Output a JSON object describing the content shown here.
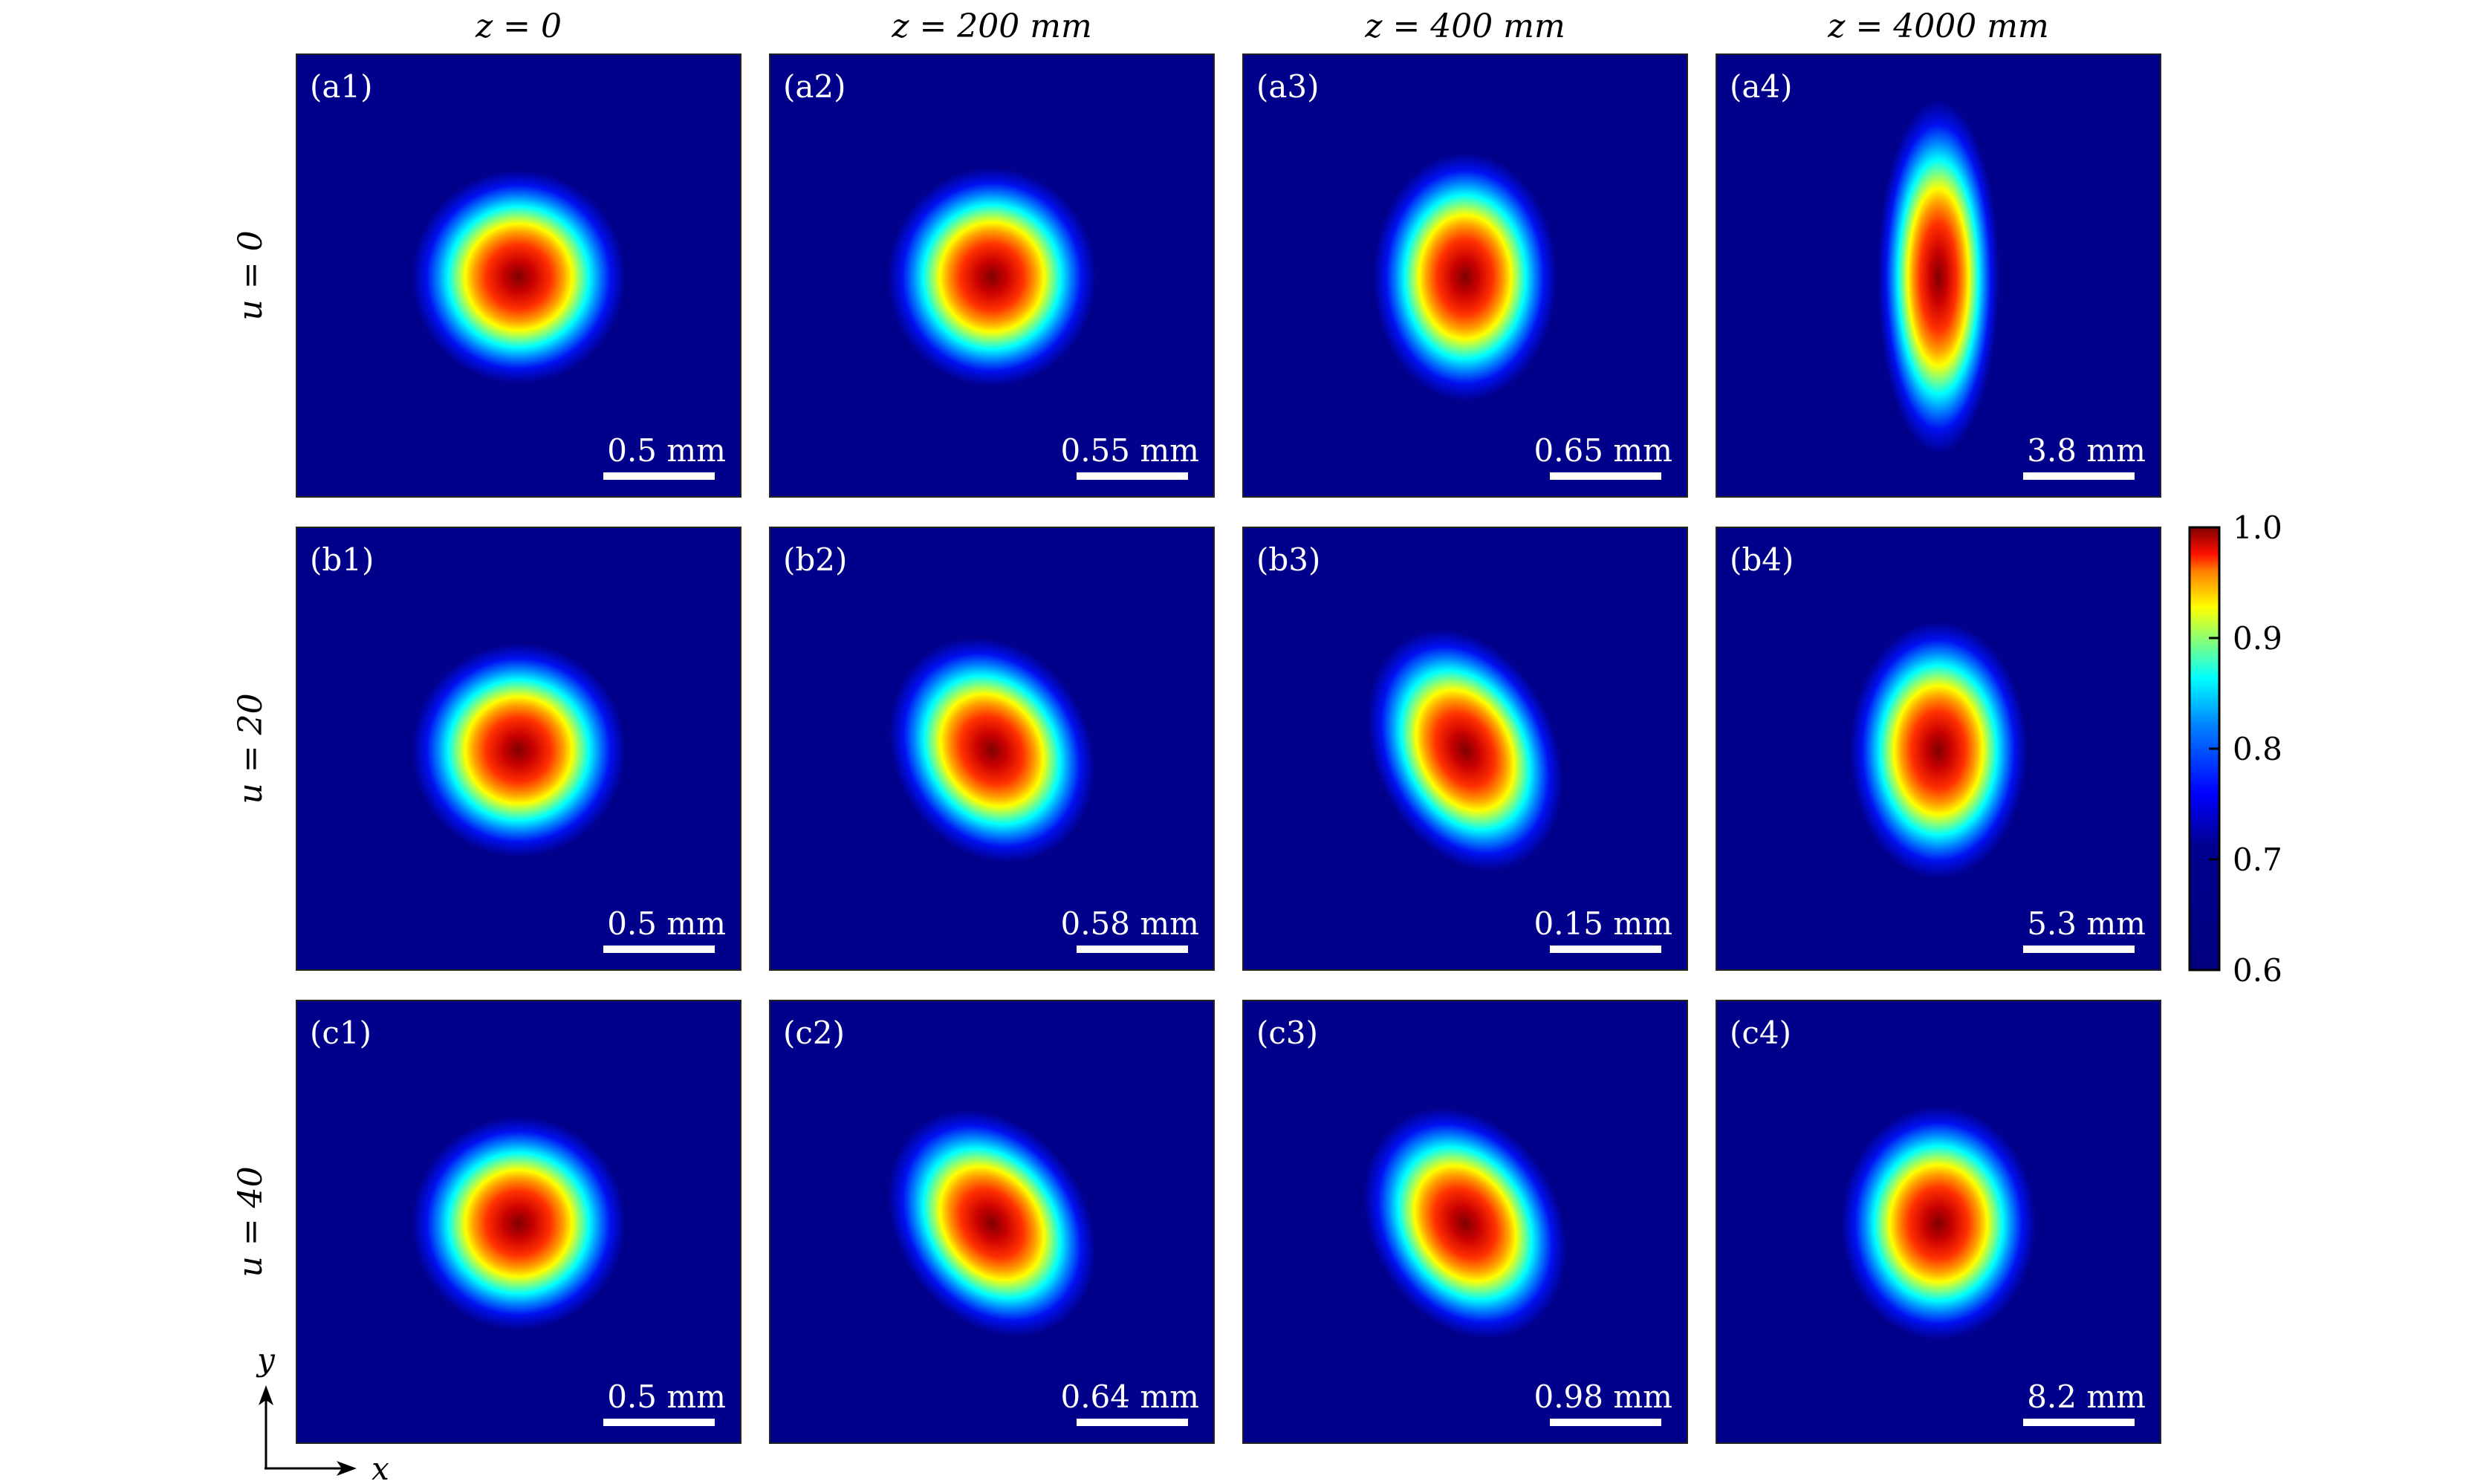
{
  "chart_data": {
    "type": "heatmap",
    "title": "",
    "column_headers": [
      "z = 0",
      "z = 200 mm",
      "z = 400 mm",
      "z = 4000 mm"
    ],
    "row_headers": [
      "u = 0",
      "u = 20",
      "u = 40"
    ],
    "panels": [
      [
        {
          "label": "(a1)",
          "scale": "0.5 mm",
          "aspect": 1.0,
          "tilt_deg": 0
        },
        {
          "label": "(a2)",
          "scale": "0.55 mm",
          "aspect": 1.05,
          "tilt_deg": 0
        },
        {
          "label": "(a3)",
          "scale": "0.65 mm",
          "aspect": 1.35,
          "tilt_deg": 0
        },
        {
          "label": "(a4)",
          "scale": "3.8 mm",
          "aspect": 3.4,
          "tilt_deg": 0
        }
      ],
      [
        {
          "label": "(b1)",
          "scale": "0.5 mm",
          "aspect": 1.0,
          "tilt_deg": 0
        },
        {
          "label": "(b2)",
          "scale": "0.58 mm",
          "aspect": 1.2,
          "tilt_deg": -30
        },
        {
          "label": "(b3)",
          "scale": "0.15 mm",
          "aspect": 1.4,
          "tilt_deg": -25
        },
        {
          "label": "(b4)",
          "scale": "5.3 mm",
          "aspect": 1.45,
          "tilt_deg": 0
        }
      ],
      [
        {
          "label": "(c1)",
          "scale": "0.5 mm",
          "aspect": 1.0,
          "tilt_deg": 0
        },
        {
          "label": "(c2)",
          "scale": "0.64 mm",
          "aspect": 1.3,
          "tilt_deg": -35
        },
        {
          "label": "(c3)",
          "scale": "0.98 mm",
          "aspect": 1.3,
          "tilt_deg": -30
        },
        {
          "label": "(c4)",
          "scale": "8.2 mm",
          "aspect": 1.2,
          "tilt_deg": 0
        }
      ]
    ],
    "colorbar": {
      "colormap": "jet",
      "range": [
        0.6,
        1.0
      ],
      "ticks": [
        "1.0",
        "0.9",
        "0.8",
        "0.7",
        "0.6"
      ]
    },
    "axes_indicator": {
      "x": "x",
      "y": "y"
    },
    "colors": {
      "background": "#00008b",
      "scale_bar": "#ffffff"
    }
  }
}
